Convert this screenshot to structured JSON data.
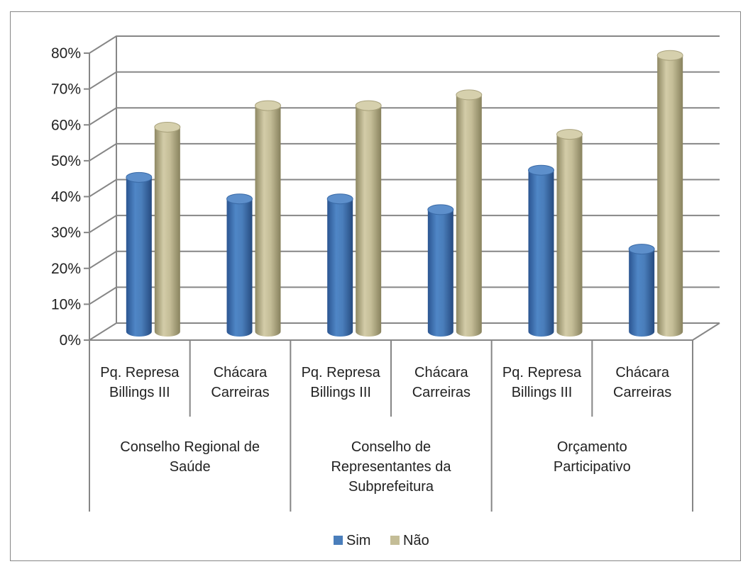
{
  "chart_data": {
    "type": "bar",
    "style": "3d-cylinder",
    "title": "",
    "xlabel": "",
    "ylabel": "",
    "ylim": [
      0,
      80
    ],
    "y_ticks": [
      "0%",
      "10%",
      "20%",
      "30%",
      "40%",
      "50%",
      "60%",
      "70%",
      "80%"
    ],
    "grid": true,
    "legend_position": "bottom",
    "categories": [
      {
        "lines": [
          "Pq. Represa",
          "Billings III"
        ]
      },
      {
        "lines": [
          "Chácara",
          "Carreiras"
        ]
      },
      {
        "lines": [
          "Pq. Represa",
          "Billings III"
        ]
      },
      {
        "lines": [
          "Chácara",
          "Carreiras"
        ]
      },
      {
        "lines": [
          "Pq. Represa",
          "Billings III"
        ]
      },
      {
        "lines": [
          "Chácara",
          "Carreiras"
        ]
      }
    ],
    "groups": [
      {
        "lines": [
          "Conselho Regional de",
          "Saúde"
        ]
      },
      {
        "lines": [
          "Conselho de",
          "Representantes da",
          "Subprefeitura"
        ]
      },
      {
        "lines": [
          "Orçamento",
          "Participativo"
        ]
      }
    ],
    "series": [
      {
        "name": "Sim",
        "color": "#4A7EBB",
        "values": [
          43,
          37,
          37,
          34,
          45,
          23
        ]
      },
      {
        "name": "Não",
        "color": "#C4BD97",
        "values": [
          57,
          63,
          63,
          66,
          55,
          77
        ]
      }
    ]
  }
}
